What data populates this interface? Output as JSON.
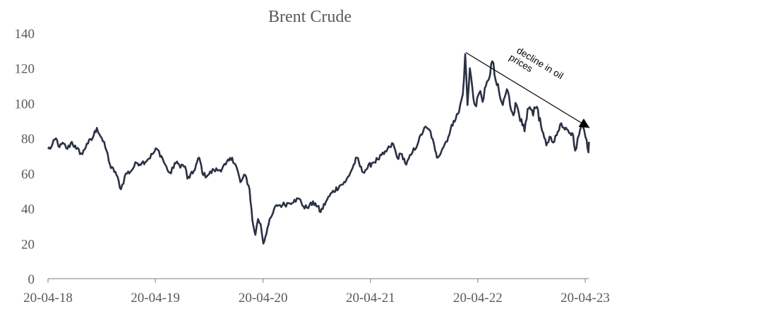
{
  "chart_data": {
    "type": "line",
    "title": "Brent Crude",
    "xlabel": "",
    "ylabel": "",
    "ylim": [
      0,
      140
    ],
    "yticks": [
      0,
      20,
      40,
      60,
      80,
      100,
      120,
      140
    ],
    "xlim": [
      "2018-04-20",
      "2023-05-03"
    ],
    "xticks": [
      {
        "date": "2018-04-20",
        "label": "20-04-18"
      },
      {
        "date": "2019-04-20",
        "label": "20-04-19"
      },
      {
        "date": "2020-04-20",
        "label": "20-04-20"
      },
      {
        "date": "2021-04-20",
        "label": "20-04-21"
      },
      {
        "date": "2022-04-20",
        "label": "20-04-22"
      },
      {
        "date": "2023-04-20",
        "label": "20-04-23"
      }
    ],
    "grid": false,
    "legend": "none",
    "line_color": "#2b3245",
    "series": [
      {
        "points": [
          [
            "2018-04-20",
            74
          ],
          [
            "2018-05-01",
            75
          ],
          [
            "2018-05-17",
            80
          ],
          [
            "2018-05-29",
            75
          ],
          [
            "2018-06-12",
            77
          ],
          [
            "2018-06-25",
            74
          ],
          [
            "2018-07-10",
            78
          ],
          [
            "2018-07-25",
            74
          ],
          [
            "2018-08-15",
            71
          ],
          [
            "2018-08-30",
            77
          ],
          [
            "2018-09-15",
            79
          ],
          [
            "2018-10-03",
            86
          ],
          [
            "2018-10-20",
            80
          ],
          [
            "2018-11-05",
            73
          ],
          [
            "2018-11-20",
            63
          ],
          [
            "2018-12-05",
            61
          ],
          [
            "2018-12-24",
            51
          ],
          [
            "2019-01-10",
            60
          ],
          [
            "2019-01-25",
            61
          ],
          [
            "2019-02-15",
            66
          ],
          [
            "2019-03-05",
            66
          ],
          [
            "2019-03-25",
            68
          ],
          [
            "2019-04-10",
            71
          ],
          [
            "2019-04-25",
            74
          ],
          [
            "2019-05-10",
            70
          ],
          [
            "2019-05-31",
            62
          ],
          [
            "2019-06-12",
            60
          ],
          [
            "2019-06-25",
            66
          ],
          [
            "2019-07-10",
            65
          ],
          [
            "2019-07-30",
            64
          ],
          [
            "2019-08-07",
            57
          ],
          [
            "2019-08-25",
            60
          ],
          [
            "2019-09-16",
            69
          ],
          [
            "2019-09-30",
            59
          ],
          [
            "2019-10-15",
            59
          ],
          [
            "2019-11-05",
            62
          ],
          [
            "2019-11-25",
            62
          ],
          [
            "2019-12-15",
            65
          ],
          [
            "2020-01-06",
            69
          ],
          [
            "2020-01-20",
            64
          ],
          [
            "2020-02-03",
            55
          ],
          [
            "2020-02-20",
            59
          ],
          [
            "2020-03-05",
            51
          ],
          [
            "2020-03-15",
            33
          ],
          [
            "2020-03-25",
            25
          ],
          [
            "2020-04-03",
            34
          ],
          [
            "2020-04-12",
            31
          ],
          [
            "2020-04-21",
            20
          ],
          [
            "2020-05-05",
            29
          ],
          [
            "2020-05-20",
            36
          ],
          [
            "2020-06-05",
            42
          ],
          [
            "2020-06-25",
            42
          ],
          [
            "2020-07-15",
            43
          ],
          [
            "2020-08-05",
            45
          ],
          [
            "2020-08-25",
            45
          ],
          [
            "2020-09-08",
            40
          ],
          [
            "2020-09-25",
            42
          ],
          [
            "2020-10-15",
            43
          ],
          [
            "2020-11-02",
            38
          ],
          [
            "2020-11-20",
            44
          ],
          [
            "2020-12-10",
            49
          ],
          [
            "2021-01-05",
            53
          ],
          [
            "2021-01-25",
            55
          ],
          [
            "2021-02-15",
            62
          ],
          [
            "2021-03-05",
            69
          ],
          [
            "2021-03-23",
            61
          ],
          [
            "2021-04-10",
            63
          ],
          [
            "2021-04-25",
            66
          ],
          [
            "2021-05-15",
            68
          ],
          [
            "2021-06-05",
            71
          ],
          [
            "2021-06-25",
            75
          ],
          [
            "2021-07-06",
            77
          ],
          [
            "2021-07-20",
            69
          ],
          [
            "2021-08-05",
            71
          ],
          [
            "2021-08-20",
            65
          ],
          [
            "2021-09-10",
            72
          ],
          [
            "2021-09-30",
            78
          ],
          [
            "2021-10-20",
            86
          ],
          [
            "2021-11-10",
            84
          ],
          [
            "2021-11-26",
            73
          ],
          [
            "2021-12-02",
            69
          ],
          [
            "2021-12-20",
            74
          ],
          [
            "2022-01-10",
            81
          ],
          [
            "2022-01-28",
            90
          ],
          [
            "2022-02-15",
            95
          ],
          [
            "2022-02-28",
            105
          ],
          [
            "2022-03-08",
            128
          ],
          [
            "2022-03-16",
            99
          ],
          [
            "2022-03-24",
            120
          ],
          [
            "2022-04-05",
            103
          ],
          [
            "2022-04-11",
            99
          ],
          [
            "2022-04-25",
            106
          ],
          [
            "2022-05-10",
            103
          ],
          [
            "2022-05-25",
            113
          ],
          [
            "2022-06-08",
            124
          ],
          [
            "2022-06-20",
            113
          ],
          [
            "2022-07-05",
            103
          ],
          [
            "2022-07-14",
            99
          ],
          [
            "2022-07-28",
            108
          ],
          [
            "2022-08-15",
            95
          ],
          [
            "2022-08-30",
            99
          ],
          [
            "2022-09-15",
            91
          ],
          [
            "2022-09-26",
            84
          ],
          [
            "2022-10-10",
            97
          ],
          [
            "2022-10-25",
            93
          ],
          [
            "2022-11-07",
            98
          ],
          [
            "2022-11-21",
            87
          ],
          [
            "2022-12-09",
            76
          ],
          [
            "2022-12-20",
            81
          ],
          [
            "2023-01-05",
            78
          ],
          [
            "2023-01-25",
            88
          ],
          [
            "2023-02-10",
            85
          ],
          [
            "2023-02-28",
            83
          ],
          [
            "2023-03-10",
            82
          ],
          [
            "2023-03-17",
            73
          ],
          [
            "2023-04-03",
            85
          ],
          [
            "2023-04-12",
            87
          ],
          [
            "2023-04-25",
            79
          ],
          [
            "2023-05-01",
            72
          ],
          [
            "2023-05-03",
            78
          ]
        ]
      }
    ],
    "annotations": [
      {
        "text_lines": [
          "decline in oil",
          "prices"
        ],
        "arrow_from": [
          "2022-03-10",
          129
        ],
        "arrow_to": [
          "2023-05-05",
          86
        ]
      }
    ]
  }
}
